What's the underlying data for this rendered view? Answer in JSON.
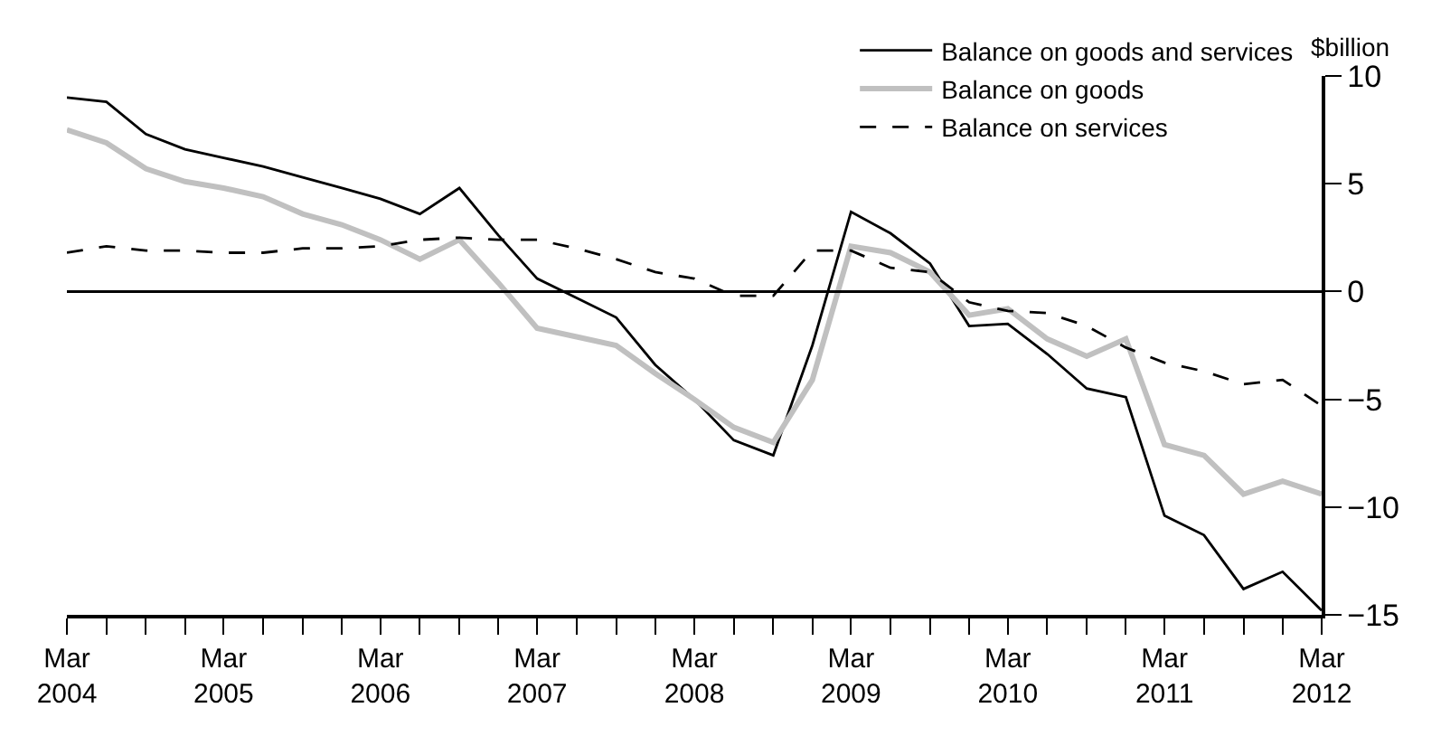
{
  "chart_data": {
    "type": "line",
    "ylabel": "$billion",
    "legend": "top right",
    "marker": "none",
    "grid": false,
    "x": [
      "2004-03",
      "2004-06",
      "2004-09",
      "2004-12",
      "2005-03",
      "2005-06",
      "2005-09",
      "2005-12",
      "2006-03",
      "2006-06",
      "2006-09",
      "2006-12",
      "2007-03",
      "2007-06",
      "2007-09",
      "2007-12",
      "2008-03",
      "2008-06",
      "2008-09",
      "2008-12",
      "2009-03",
      "2009-06",
      "2009-09",
      "2009-12",
      "2010-03",
      "2010-06",
      "2010-09",
      "2010-12",
      "2011-03",
      "2011-06",
      "2011-09",
      "2011-12",
      "2012-03"
    ],
    "series": [
      {
        "name": "Balance on goods and services",
        "color": "#000000",
        "line_style": "solid",
        "values": [
          9.0,
          8.8,
          7.3,
          6.6,
          6.2,
          5.8,
          5.3,
          4.8,
          4.3,
          3.6,
          4.8,
          2.6,
          0.6,
          -0.3,
          -1.2,
          -3.4,
          -5.0,
          -6.9,
          -7.6,
          -2.5,
          3.7,
          2.7,
          1.3,
          -1.6,
          -1.5,
          -2.9,
          -4.5,
          -4.9,
          -10.4,
          -11.3,
          -13.8,
          -13.0,
          -14.8
        ]
      },
      {
        "name": "Balance on goods",
        "color": "#c0c0c0",
        "line_style": "solid",
        "values": [
          7.5,
          6.9,
          5.7,
          5.1,
          4.8,
          4.4,
          3.6,
          3.1,
          2.4,
          1.5,
          2.4,
          0.4,
          -1.7,
          -2.1,
          -2.5,
          -3.8,
          -5.0,
          -6.3,
          -7.0,
          -4.1,
          2.1,
          1.8,
          0.9,
          -1.1,
          -0.8,
          -2.2,
          -3.0,
          -2.2,
          -7.1,
          -7.6,
          -9.4,
          -8.8,
          -9.4
        ]
      },
      {
        "name": "Balance on services",
        "color": "#000000",
        "line_style": "dashed",
        "values": [
          1.8,
          2.1,
          1.9,
          1.9,
          1.8,
          1.8,
          2.0,
          2.0,
          2.1,
          2.4,
          2.5,
          2.4,
          2.4,
          2.0,
          1.5,
          0.9,
          0.6,
          -0.2,
          -0.2,
          1.9,
          1.9,
          1.1,
          0.9,
          -0.5,
          -0.9,
          -1.0,
          -1.6,
          -2.6,
          -3.3,
          -3.7,
          -4.3,
          -4.1,
          -5.3
        ]
      }
    ],
    "xlim": [
      "2004-03",
      "2012-03"
    ],
    "xticks": [
      {
        "value": "2004-03",
        "label": "Mar\n2004"
      },
      {
        "value": "2004-06",
        "label": null
      },
      {
        "value": "2004-09",
        "label": null
      },
      {
        "value": "2004-12",
        "label": null
      },
      {
        "value": "2005-03",
        "label": "Mar\n2005"
      },
      {
        "value": "2005-06",
        "label": null
      },
      {
        "value": "2005-09",
        "label": null
      },
      {
        "value": "2005-12",
        "label": null
      },
      {
        "value": "2006-03",
        "label": "Mar\n2006"
      },
      {
        "value": "2006-06",
        "label": null
      },
      {
        "value": "2006-09",
        "label": null
      },
      {
        "value": "2006-12",
        "label": null
      },
      {
        "value": "2007-03",
        "label": "Mar\n2007"
      },
      {
        "value": "2007-06",
        "label": null
      },
      {
        "value": "2007-09",
        "label": null
      },
      {
        "value": "2007-12",
        "label": null
      },
      {
        "value": "2008-03",
        "label": "Mar\n2008"
      },
      {
        "value": "2008-06",
        "label": null
      },
      {
        "value": "2008-09",
        "label": null
      },
      {
        "value": "2008-12",
        "label": null
      },
      {
        "value": "2009-03",
        "label": "Mar\n2009"
      },
      {
        "value": "2009-06",
        "label": null
      },
      {
        "value": "2009-09",
        "label": null
      },
      {
        "value": "2009-12",
        "label": null
      },
      {
        "value": "2010-03",
        "label": "Mar\n2010"
      },
      {
        "value": "2010-06",
        "label": null
      },
      {
        "value": "2010-09",
        "label": null
      },
      {
        "value": "2010-12",
        "label": null
      },
      {
        "value": "2011-03",
        "label": "Mar\n2011"
      },
      {
        "value": "2011-06",
        "label": null
      },
      {
        "value": "2011-09",
        "label": null
      },
      {
        "value": "2011-12",
        "label": null
      },
      {
        "value": "2012-03",
        "label": "Mar\n2012"
      }
    ],
    "ylim": [
      -15,
      10
    ],
    "yticks": [
      {
        "value": -15,
        "label": "−15"
      },
      {
        "value": -10,
        "label": "−10"
      },
      {
        "value": -5,
        "label": "−5"
      },
      0,
      5,
      10
    ],
    "ref_lines": [
      {
        "axis": "y",
        "value": 0,
        "color": "#000000"
      }
    ]
  }
}
